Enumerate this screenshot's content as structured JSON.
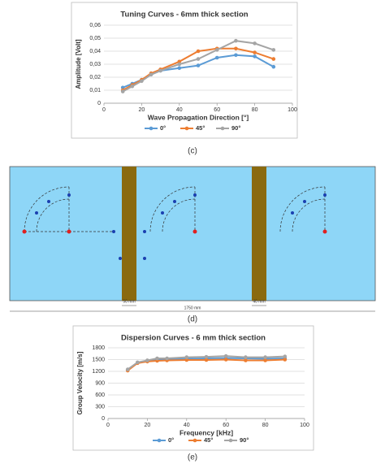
{
  "chart_data": [
    {
      "type": "line",
      "title": "Tuning Curves - 6mm thick section",
      "x_label": "Wave Propagation Direction [°]",
      "y_label": "Amplitude [Volt]",
      "x": [
        10,
        15,
        20,
        25,
        30,
        40,
        50,
        60,
        70,
        80,
        90
      ],
      "series": [
        {
          "name": "0°",
          "color": "#5b9bd5",
          "values": [
            0.012,
            0.015,
            0.018,
            0.022,
            0.025,
            0.027,
            0.029,
            0.035,
            0.037,
            0.036,
            0.028
          ]
        },
        {
          "name": "45°",
          "color": "#ed7d31",
          "values": [
            0.01,
            0.014,
            0.018,
            0.023,
            0.026,
            0.032,
            0.04,
            0.042,
            0.042,
            0.039,
            0.034
          ]
        },
        {
          "name": "90°",
          "color": "#a5a5a5",
          "values": [
            0.009,
            0.013,
            0.017,
            0.022,
            0.025,
            0.03,
            0.034,
            0.041,
            0.048,
            0.046,
            0.041
          ]
        }
      ],
      "xlim": [
        0,
        100
      ],
      "xticks": [
        0,
        20,
        40,
        60,
        80,
        100
      ],
      "ylim": [
        0,
        0.06
      ],
      "yticks": [
        0,
        {
          "value": 0.01,
          "label": "0,01"
        },
        {
          "value": 0.02,
          "label": "0,02"
        },
        {
          "value": 0.03,
          "label": "0,03"
        },
        {
          "value": 0.04,
          "label": "0,04"
        },
        {
          "value": 0.05,
          "label": "0,05"
        },
        {
          "value": 0.06,
          "label": "0,06"
        }
      ],
      "grid": true,
      "legend": "bottom"
    },
    {
      "type": "line",
      "title": "Dispersion Curves - 6 mm thick section",
      "x_label": "Frequency [kHz]",
      "y_label": "Group Velocity [m/s]",
      "x": [
        10,
        15,
        20,
        25,
        30,
        40,
        50,
        60,
        70,
        80,
        90
      ],
      "series": [
        {
          "name": "0°",
          "color": "#5b9bd5",
          "values": [
            1230,
            1420,
            1460,
            1490,
            1500,
            1520,
            1530,
            1540,
            1530,
            1520,
            1530
          ]
        },
        {
          "name": "45°",
          "color": "#ed7d31",
          "values": [
            1220,
            1410,
            1450,
            1470,
            1480,
            1490,
            1490,
            1500,
            1480,
            1480,
            1500
          ]
        },
        {
          "name": "90°",
          "color": "#a5a5a5",
          "values": [
            1250,
            1430,
            1480,
            1530,
            1530,
            1560,
            1570,
            1590,
            1560,
            1560,
            1580
          ]
        }
      ],
      "xlim": [
        0,
        100
      ],
      "xticks": [
        0,
        20,
        40,
        60,
        80,
        100
      ],
      "ylim": [
        0,
        1800
      ],
      "yticks": [
        0,
        300,
        600,
        900,
        1200,
        1500,
        1800
      ],
      "grid": true,
      "legend": "bottom"
    }
  ],
  "panels": [
    "(c)",
    "(d)",
    "(e)"
  ],
  "diagram": {
    "labels": [
      "50 mm",
      "40 mm",
      "1750 mm"
    ]
  }
}
